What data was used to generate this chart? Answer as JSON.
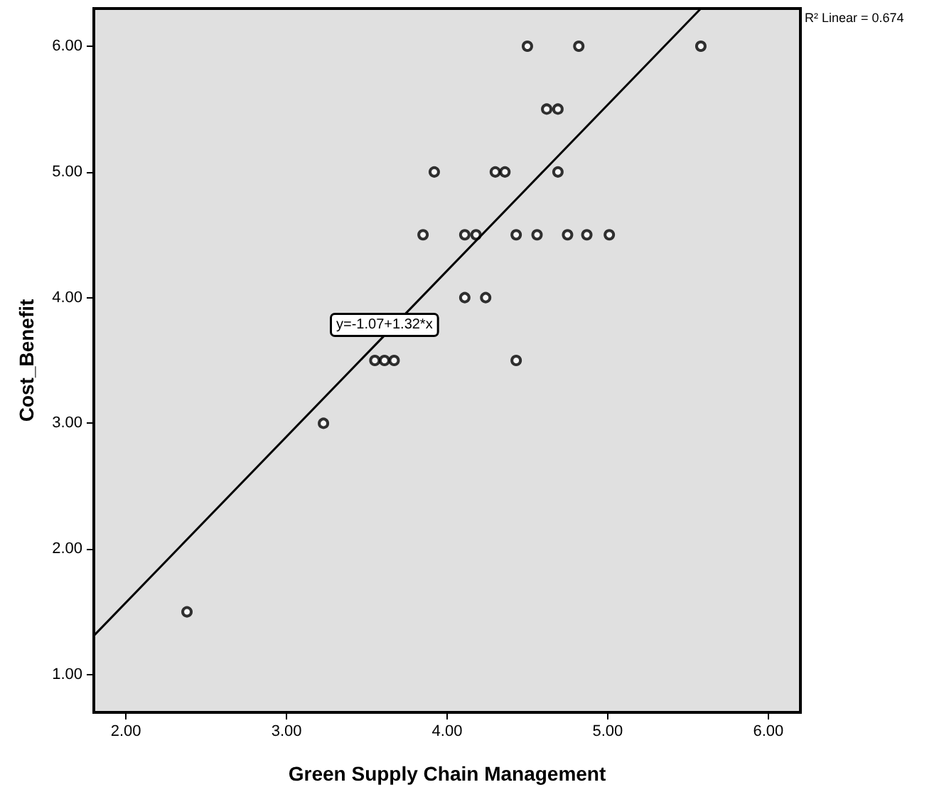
{
  "chart_data": {
    "type": "scatter",
    "xlabel": "Green Supply Chain Management",
    "ylabel": "Cost_Benefit",
    "xlim": [
      1.8,
      6.2
    ],
    "ylim": [
      0.7,
      6.3
    ],
    "xticks": [
      {
        "value": 2,
        "label": "2.00"
      },
      {
        "value": 3,
        "label": "3.00"
      },
      {
        "value": 4,
        "label": "4.00"
      },
      {
        "value": 5,
        "label": "5.00"
      },
      {
        "value": 6,
        "label": "6.00"
      }
    ],
    "yticks": [
      {
        "value": 1,
        "label": "1.00"
      },
      {
        "value": 2,
        "label": "2.00"
      },
      {
        "value": 3,
        "label": "3.00"
      },
      {
        "value": 4,
        "label": "4.00"
      },
      {
        "value": 5,
        "label": "5.00"
      },
      {
        "value": 6,
        "label": "6.00"
      }
    ],
    "grid": false,
    "series": [
      {
        "color": "#000000",
        "marker": "circle",
        "x": [
          4.5,
          4.82,
          5.58,
          4.62,
          4.69,
          3.92,
          4.3,
          4.36,
          4.69,
          3.85,
          4.11,
          4.18,
          4.43,
          4.56,
          4.75,
          4.87,
          5.01,
          4.11,
          4.24,
          3.55,
          3.61,
          3.67,
          4.43,
          3.23,
          2.38
        ],
        "values": [
          6,
          6,
          6,
          5.5,
          5.5,
          5,
          5,
          5,
          5,
          4.5,
          4.5,
          4.5,
          4.5,
          4.5,
          4.5,
          4.5,
          4.5,
          4,
          4,
          3.5,
          3.5,
          3.5,
          3.5,
          3,
          1.5
        ]
      },
      {
        "type": "line",
        "color": "#000000",
        "marker": "none",
        "line_style": "solid",
        "x": [
          1.8,
          5.58
        ],
        "values": [
          1.31,
          6.3
        ]
      }
    ],
    "annotations": [
      "y=-1.07+1.32*x",
      "R² Linear = 0.674"
    ]
  }
}
